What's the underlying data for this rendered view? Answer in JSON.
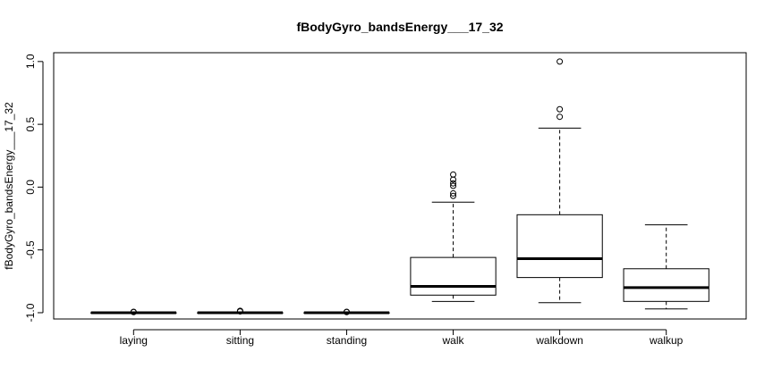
{
  "chart_data": {
    "type": "boxplot",
    "title": "fBodyGyro_bandsEnergy___17_32",
    "ylabel": "fBodyGyro_bandsEnergy___17_32",
    "xlabel": "",
    "ylim": [
      -1.05,
      1.07
    ],
    "yticks": [
      "-1.0",
      "-0.5",
      "0.0",
      "0.5",
      "1.0"
    ],
    "categories": [
      "laying",
      "sitting",
      "standing",
      "walk",
      "walkdown",
      "walkup"
    ],
    "boxes": [
      {
        "name": "laying",
        "whisker_low": -1.0,
        "q1": -1.0,
        "median": -1.0,
        "q3": -1.0,
        "whisker_high": -1.0,
        "outliers": [
          -0.995,
          -0.993
        ]
      },
      {
        "name": "sitting",
        "whisker_low": -1.0,
        "q1": -1.0,
        "median": -1.0,
        "q3": -1.0,
        "whisker_high": -1.0,
        "outliers": [
          -0.99,
          -0.985
        ]
      },
      {
        "name": "standing",
        "whisker_low": -1.0,
        "q1": -1.0,
        "median": -1.0,
        "q3": -1.0,
        "whisker_high": -1.0,
        "outliers": [
          -0.995,
          -0.993
        ]
      },
      {
        "name": "walk",
        "whisker_low": -0.91,
        "q1": -0.86,
        "median": -0.79,
        "q3": -0.56,
        "whisker_high": -0.12,
        "outliers": [
          0.1,
          0.06,
          0.03,
          0.01,
          -0.05,
          -0.07
        ]
      },
      {
        "name": "walkdown",
        "whisker_low": -0.92,
        "q1": -0.72,
        "median": -0.57,
        "q3": -0.22,
        "whisker_high": 0.47,
        "outliers": [
          1.0,
          0.62,
          0.56
        ]
      },
      {
        "name": "walkup",
        "whisker_low": -0.97,
        "q1": -0.91,
        "median": -0.8,
        "q3": -0.65,
        "whisker_high": -0.3,
        "outliers": []
      }
    ]
  }
}
